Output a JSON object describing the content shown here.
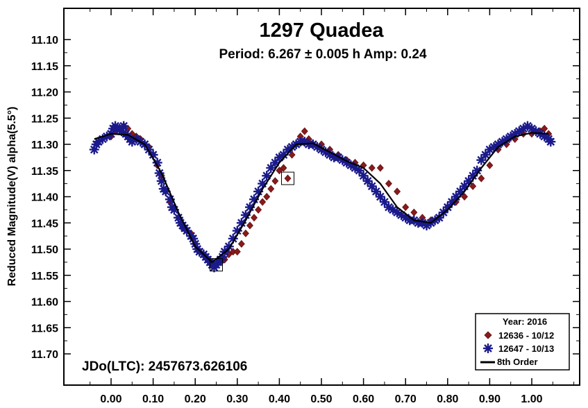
{
  "chart_data": {
    "type": "scatter",
    "title": "1297 Quadea",
    "subtitle": "Period: 6.267 ± 0.005 h   Amp: 0.24",
    "ylabel": "Reduced Magnitude(V) alpha(5.5°)",
    "xlabel": "",
    "annotation": "JDo(LTC): 2457673.626106",
    "xlim": [
      -0.07,
      1.12
    ],
    "ylim": [
      11.05,
      11.78
    ],
    "y_inverted": true,
    "grid": false,
    "legend_position": "bottom-right",
    "x_ticks": [
      "0.00",
      "0.10",
      "0.20",
      "0.30",
      "0.40",
      "0.50",
      "0.60",
      "0.70",
      "0.80",
      "0.90",
      "1.00"
    ],
    "x_tick_values": [
      0,
      0.1,
      0.2,
      0.3,
      0.4,
      0.5,
      0.6,
      0.7,
      0.8,
      0.9,
      1.0
    ],
    "y_ticks": [
      "11.10",
      "11.15",
      "11.20",
      "11.25",
      "11.30",
      "11.35",
      "11.40",
      "11.45",
      "11.50",
      "11.55",
      "11.60",
      "11.65",
      "11.70"
    ],
    "y_tick_values": [
      11.1,
      11.15,
      11.2,
      11.25,
      11.3,
      11.35,
      11.4,
      11.45,
      11.5,
      11.55,
      11.6,
      11.65,
      11.7
    ],
    "legend": {
      "title": "Year: 2016",
      "entries": [
        "12636 - 10/12",
        "12647 - 10/13",
        "8th Order"
      ]
    },
    "series": [
      {
        "name": "12636 - 10/12",
        "marker": "diamond",
        "color": "#8b1a1a",
        "points": [
          [
            0.0,
            11.285
          ],
          [
            0.01,
            11.275
          ],
          [
            0.02,
            11.27
          ],
          [
            0.03,
            11.265
          ],
          [
            0.04,
            11.27
          ],
          [
            0.05,
            11.28
          ],
          [
            0.06,
            11.285
          ],
          [
            0.07,
            11.29
          ],
          [
            0.08,
            11.3
          ],
          [
            0.09,
            11.305
          ],
          [
            0.1,
            11.32
          ],
          [
            0.11,
            11.34
          ],
          [
            0.12,
            11.36
          ],
          [
            0.13,
            11.39
          ],
          [
            0.14,
            11.41
          ],
          [
            0.15,
            11.42
          ],
          [
            0.16,
            11.44
          ],
          [
            0.17,
            11.46
          ],
          [
            0.18,
            11.465
          ],
          [
            0.19,
            11.47
          ],
          [
            0.2,
            11.49
          ],
          [
            0.21,
            11.505
          ],
          [
            0.22,
            11.51
          ],
          [
            0.23,
            11.52
          ],
          [
            0.24,
            11.53
          ],
          [
            0.25,
            11.53
          ],
          [
            0.26,
            11.525
          ],
          [
            0.27,
            11.52
          ],
          [
            0.28,
            11.51
          ],
          [
            0.29,
            11.505
          ],
          [
            0.3,
            11.505
          ],
          [
            0.31,
            11.49
          ],
          [
            0.32,
            11.47
          ],
          [
            0.33,
            11.455
          ],
          [
            0.34,
            11.44
          ],
          [
            0.35,
            11.425
          ],
          [
            0.36,
            11.41
          ],
          [
            0.37,
            11.4
          ],
          [
            0.38,
            11.385
          ],
          [
            0.39,
            11.37
          ],
          [
            0.4,
            11.35
          ],
          [
            0.41,
            11.345
          ],
          [
            0.42,
            11.365
          ],
          [
            0.43,
            11.32
          ],
          [
            0.44,
            11.3
          ],
          [
            0.45,
            11.285
          ],
          [
            0.46,
            11.275
          ],
          [
            0.47,
            11.29
          ],
          [
            0.48,
            11.3
          ],
          [
            0.5,
            11.3
          ],
          [
            0.52,
            11.31
          ],
          [
            0.54,
            11.32
          ],
          [
            0.56,
            11.33
          ],
          [
            0.58,
            11.335
          ],
          [
            0.6,
            11.34
          ],
          [
            0.62,
            11.345
          ],
          [
            0.64,
            11.345
          ],
          [
            0.66,
            11.375
          ],
          [
            0.68,
            11.39
          ],
          [
            0.7,
            11.42
          ],
          [
            0.72,
            11.43
          ],
          [
            0.74,
            11.44
          ],
          [
            0.76,
            11.445
          ],
          [
            0.78,
            11.44
          ],
          [
            0.8,
            11.42
          ],
          [
            0.82,
            11.41
          ],
          [
            0.84,
            11.4
          ],
          [
            0.86,
            11.38
          ],
          [
            0.88,
            11.365
          ],
          [
            0.9,
            11.34
          ],
          [
            0.92,
            11.31
          ],
          [
            0.94,
            11.3
          ],
          [
            0.96,
            11.29
          ],
          [
            0.98,
            11.28
          ],
          [
            1.0,
            11.28
          ],
          [
            1.02,
            11.275
          ],
          [
            1.03,
            11.27
          ],
          [
            1.04,
            11.28
          ]
        ]
      },
      {
        "name": "12647 - 10/13",
        "marker": "asterisk",
        "color": "#1a1a8b",
        "points": [
          [
            -0.04,
            11.31
          ],
          [
            -0.035,
            11.3
          ],
          [
            -0.03,
            11.295
          ],
          [
            -0.02,
            11.29
          ],
          [
            -0.01,
            11.285
          ],
          [
            0.0,
            11.28
          ],
          [
            0.005,
            11.27
          ],
          [
            0.01,
            11.265
          ],
          [
            0.015,
            11.27
          ],
          [
            0.02,
            11.27
          ],
          [
            0.025,
            11.275
          ],
          [
            0.03,
            11.265
          ],
          [
            0.035,
            11.28
          ],
          [
            0.04,
            11.285
          ],
          [
            0.045,
            11.29
          ],
          [
            0.05,
            11.295
          ],
          [
            0.06,
            11.29
          ],
          [
            0.07,
            11.295
          ],
          [
            0.08,
            11.3
          ],
          [
            0.09,
            11.31
          ],
          [
            0.1,
            11.32
          ],
          [
            0.11,
            11.335
          ],
          [
            0.115,
            11.355
          ],
          [
            0.12,
            11.37
          ],
          [
            0.125,
            11.385
          ],
          [
            0.13,
            11.39
          ],
          [
            0.14,
            11.405
          ],
          [
            0.145,
            11.42
          ],
          [
            0.15,
            11.425
          ],
          [
            0.16,
            11.44
          ],
          [
            0.165,
            11.45
          ],
          [
            0.17,
            11.455
          ],
          [
            0.175,
            11.46
          ],
          [
            0.18,
            11.465
          ],
          [
            0.19,
            11.475
          ],
          [
            0.195,
            11.48
          ],
          [
            0.2,
            11.49
          ],
          [
            0.205,
            11.5
          ],
          [
            0.21,
            11.505
          ],
          [
            0.22,
            11.51
          ],
          [
            0.225,
            11.515
          ],
          [
            0.23,
            11.52
          ],
          [
            0.235,
            11.525
          ],
          [
            0.24,
            11.53
          ],
          [
            0.245,
            11.535
          ],
          [
            0.25,
            11.53
          ],
          [
            0.255,
            11.525
          ],
          [
            0.26,
            11.52
          ],
          [
            0.265,
            11.515
          ],
          [
            0.27,
            11.505
          ],
          [
            0.28,
            11.495
          ],
          [
            0.29,
            11.48
          ],
          [
            0.3,
            11.465
          ],
          [
            0.31,
            11.45
          ],
          [
            0.32,
            11.435
          ],
          [
            0.33,
            11.42
          ],
          [
            0.34,
            11.405
          ],
          [
            0.35,
            11.39
          ],
          [
            0.36,
            11.375
          ],
          [
            0.37,
            11.36
          ],
          [
            0.38,
            11.345
          ],
          [
            0.39,
            11.335
          ],
          [
            0.4,
            11.325
          ],
          [
            0.41,
            11.32
          ],
          [
            0.42,
            11.31
          ],
          [
            0.43,
            11.305
          ],
          [
            0.44,
            11.3
          ],
          [
            0.45,
            11.295
          ],
          [
            0.46,
            11.295
          ],
          [
            0.47,
            11.3
          ],
          [
            0.48,
            11.3
          ],
          [
            0.49,
            11.305
          ],
          [
            0.5,
            11.31
          ],
          [
            0.51,
            11.315
          ],
          [
            0.52,
            11.32
          ],
          [
            0.53,
            11.325
          ],
          [
            0.54,
            11.325
          ],
          [
            0.55,
            11.33
          ],
          [
            0.56,
            11.335
          ],
          [
            0.57,
            11.34
          ],
          [
            0.58,
            11.345
          ],
          [
            0.59,
            11.35
          ],
          [
            0.6,
            11.36
          ],
          [
            0.61,
            11.37
          ],
          [
            0.62,
            11.38
          ],
          [
            0.63,
            11.39
          ],
          [
            0.64,
            11.4
          ],
          [
            0.65,
            11.41
          ],
          [
            0.66,
            11.42
          ],
          [
            0.67,
            11.425
          ],
          [
            0.68,
            11.43
          ],
          [
            0.69,
            11.435
          ],
          [
            0.7,
            11.44
          ],
          [
            0.71,
            11.445
          ],
          [
            0.72,
            11.445
          ],
          [
            0.73,
            11.45
          ],
          [
            0.74,
            11.45
          ],
          [
            0.75,
            11.455
          ],
          [
            0.76,
            11.45
          ],
          [
            0.77,
            11.445
          ],
          [
            0.78,
            11.44
          ],
          [
            0.79,
            11.43
          ],
          [
            0.8,
            11.42
          ],
          [
            0.81,
            11.41
          ],
          [
            0.82,
            11.4
          ],
          [
            0.83,
            11.39
          ],
          [
            0.84,
            11.38
          ],
          [
            0.85,
            11.37
          ],
          [
            0.86,
            11.36
          ],
          [
            0.87,
            11.35
          ],
          [
            0.88,
            11.33
          ],
          [
            0.89,
            11.32
          ],
          [
            0.9,
            11.31
          ],
          [
            0.91,
            11.305
          ],
          [
            0.92,
            11.3
          ],
          [
            0.93,
            11.295
          ],
          [
            0.94,
            11.29
          ],
          [
            0.95,
            11.285
          ],
          [
            0.96,
            11.28
          ],
          [
            0.97,
            11.275
          ],
          [
            0.98,
            11.27
          ],
          [
            0.99,
            11.265
          ],
          [
            1.0,
            11.27
          ],
          [
            1.01,
            11.275
          ],
          [
            1.02,
            11.28
          ],
          [
            1.03,
            11.285
          ],
          [
            1.04,
            11.29
          ],
          [
            1.045,
            11.295
          ]
        ]
      }
    ],
    "fit_curve": {
      "name": "8th Order",
      "color": "#000000",
      "x": [
        -0.04,
        0.0,
        0.04,
        0.08,
        0.12,
        0.16,
        0.2,
        0.24,
        0.28,
        0.32,
        0.36,
        0.4,
        0.44,
        0.48,
        0.52,
        0.56,
        0.6,
        0.64,
        0.68,
        0.72,
        0.76,
        0.8,
        0.84,
        0.88,
        0.92,
        0.96,
        1.0,
        1.04
      ],
      "y": [
        11.29,
        11.28,
        11.282,
        11.3,
        11.355,
        11.43,
        11.495,
        11.525,
        11.5,
        11.445,
        11.385,
        11.335,
        11.3,
        11.298,
        11.315,
        11.332,
        11.345,
        11.375,
        11.42,
        11.445,
        11.45,
        11.425,
        11.39,
        11.345,
        11.305,
        11.285,
        11.278,
        11.28
      ]
    },
    "highlighted_points": [
      [
        0.42,
        11.365
      ],
      [
        0.25,
        11.53
      ]
    ]
  }
}
